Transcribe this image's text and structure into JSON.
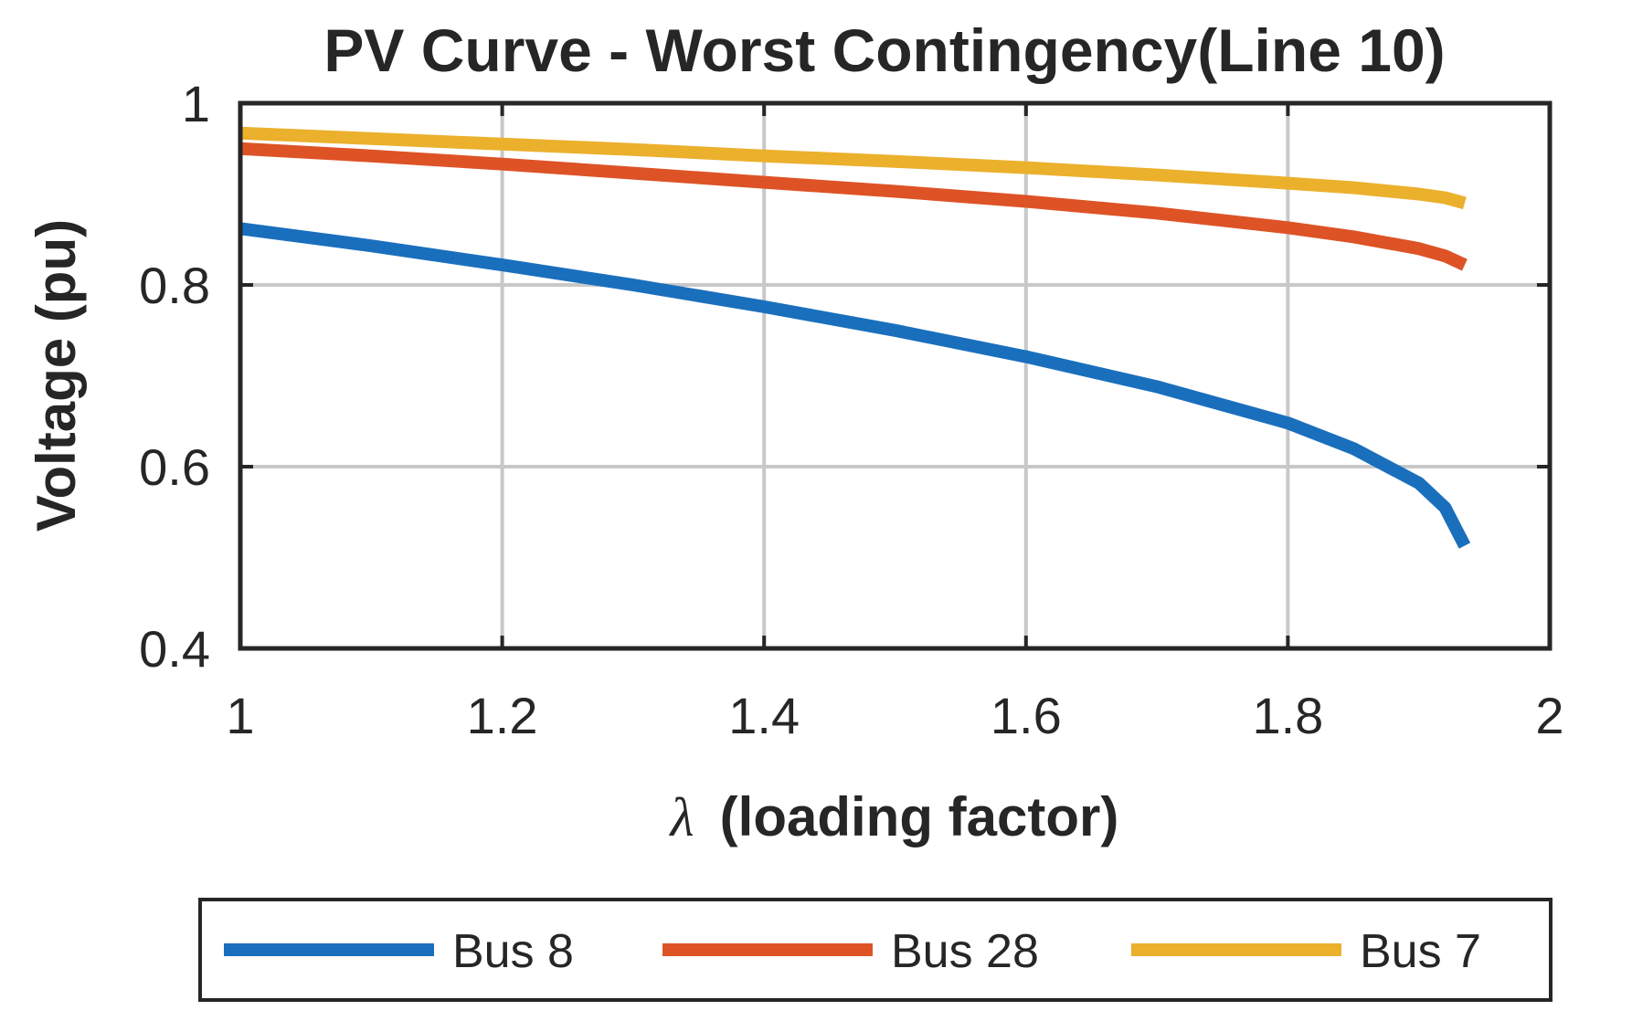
{
  "chart_data": {
    "type": "line",
    "title": "PV Curve - Worst Contingency(Line 10)",
    "xlabel_symbol": "λ",
    "xlabel_text": "(loading factor)",
    "ylabel": "Voltage (pu)",
    "xlim": [
      1,
      2
    ],
    "ylim": [
      0.4,
      1
    ],
    "xticks": [
      1,
      1.2,
      1.4,
      1.6,
      1.8,
      2
    ],
    "yticks": [
      0.4,
      0.6,
      0.8,
      1
    ],
    "xtick_labels": [
      "1",
      "1.2",
      "1.4",
      "1.6",
      "1.8",
      "2"
    ],
    "ytick_labels": [
      "0.4",
      "0.6",
      "0.8",
      "1"
    ],
    "grid": true,
    "legend_position": "bottom-outside",
    "series": [
      {
        "name": "Bus 8",
        "color": "#1a6fbd",
        "x": [
          1.0,
          1.1,
          1.2,
          1.3,
          1.4,
          1.5,
          1.6,
          1.7,
          1.8,
          1.85,
          1.9,
          1.92,
          1.935
        ],
        "y": [
          0.862,
          0.843,
          0.822,
          0.8,
          0.776,
          0.75,
          0.721,
          0.688,
          0.648,
          0.62,
          0.582,
          0.555,
          0.513
        ]
      },
      {
        "name": "Bus 28",
        "color": "#dd5326",
        "x": [
          1.0,
          1.1,
          1.2,
          1.3,
          1.4,
          1.5,
          1.6,
          1.7,
          1.8,
          1.85,
          1.9,
          1.92,
          1.935
        ],
        "y": [
          0.95,
          0.942,
          0.933,
          0.923,
          0.913,
          0.903,
          0.892,
          0.879,
          0.863,
          0.853,
          0.84,
          0.832,
          0.822
        ]
      },
      {
        "name": "Bus 7",
        "color": "#ebb02c",
        "x": [
          1.0,
          1.1,
          1.2,
          1.3,
          1.4,
          1.5,
          1.6,
          1.7,
          1.8,
          1.85,
          1.9,
          1.92,
          1.935
        ],
        "y": [
          0.967,
          0.961,
          0.955,
          0.949,
          0.942,
          0.936,
          0.929,
          0.921,
          0.912,
          0.907,
          0.9,
          0.896,
          0.89
        ]
      }
    ]
  }
}
